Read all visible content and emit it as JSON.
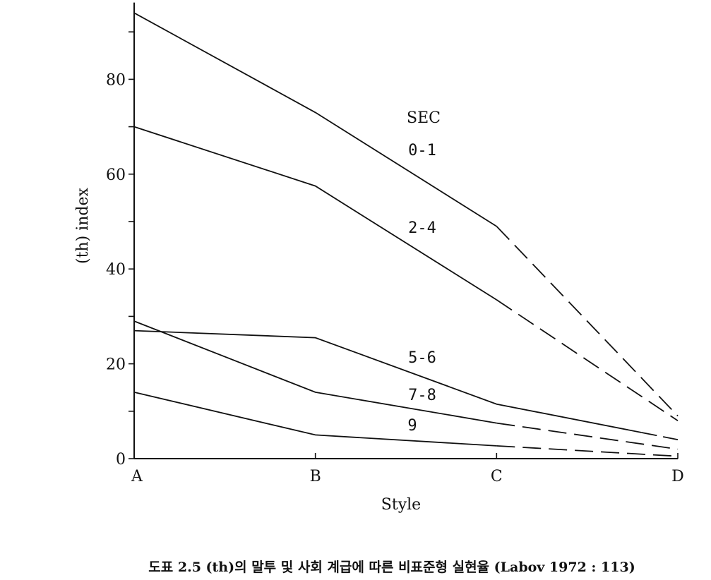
{
  "chart_data": {
    "type": "line",
    "xlabel": "Style",
    "ylabel": "(th) index",
    "categories": [
      "A",
      "B",
      "C",
      "D"
    ],
    "ylim": [
      0,
      95
    ],
    "yticks": [
      0,
      20,
      40,
      60,
      80
    ],
    "grid": false,
    "legend_title": "SEC",
    "series": [
      {
        "name": "0-1",
        "values": [
          94,
          73,
          49,
          9
        ],
        "dashed_from_index": 2
      },
      {
        "name": "2-4",
        "values": [
          70,
          57.5,
          33.5,
          8
        ],
        "dashed_from_index": 2
      },
      {
        "name": "5-6",
        "values": [
          27,
          25.5,
          11.5,
          4
        ],
        "dashed_from": 2.8
      },
      {
        "name": "7-8",
        "values": [
          29,
          14,
          7.5,
          2
        ],
        "dashed_from_index": 2
      },
      {
        "name": "9",
        "values": [
          14,
          5,
          2.7,
          0.5
        ],
        "dashed_from_index": 2
      }
    ],
    "caption": "도표 2.5  (th)의 말투 및 사회 계급에 따른 비표준형 실현율 (Labov 1972 : 113)"
  }
}
